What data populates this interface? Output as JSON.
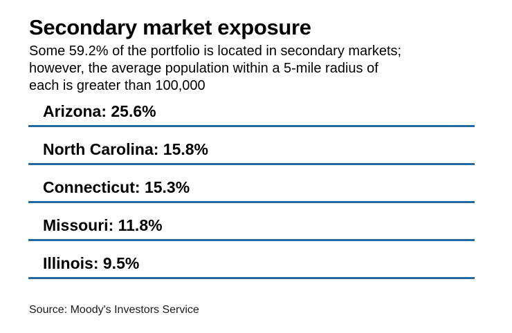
{
  "chart": {
    "title": "Secondary market exposure",
    "subtitle_lines": [
      "Some 59.2% of the portfolio is located in secondary markets;",
      "however, the average population within a 5-mile radius of",
      "each is greater than 100,000"
    ],
    "source": "Source: Moody's Investors Service",
    "rule_color": "#2368a2"
  },
  "rows": [
    {
      "label": "Arizona: 25.6%"
    },
    {
      "label": "North Carolina: 15.8%"
    },
    {
      "label": "Connecticut: 15.3%"
    },
    {
      "label": "Missouri: 11.8%"
    },
    {
      "label": "Illinois: 9.5%"
    }
  ],
  "chart_data": {
    "type": "table",
    "title": "Secondary market exposure",
    "subtitle": "Some 59.2% of the portfolio is located in secondary markets; however, the average population within a 5-mile radius of each is greater than 100,000",
    "categories": [
      "Arizona",
      "North Carolina",
      "Connecticut",
      "Missouri",
      "Illinois"
    ],
    "values": [
      25.6,
      15.8,
      15.3,
      11.8,
      9.5
    ],
    "unit": "%",
    "highlight_value": 59.2,
    "source": "Source: Moody's Investors Service",
    "accent_color": "#2368a2",
    "legend": "none",
    "grid": "off"
  }
}
